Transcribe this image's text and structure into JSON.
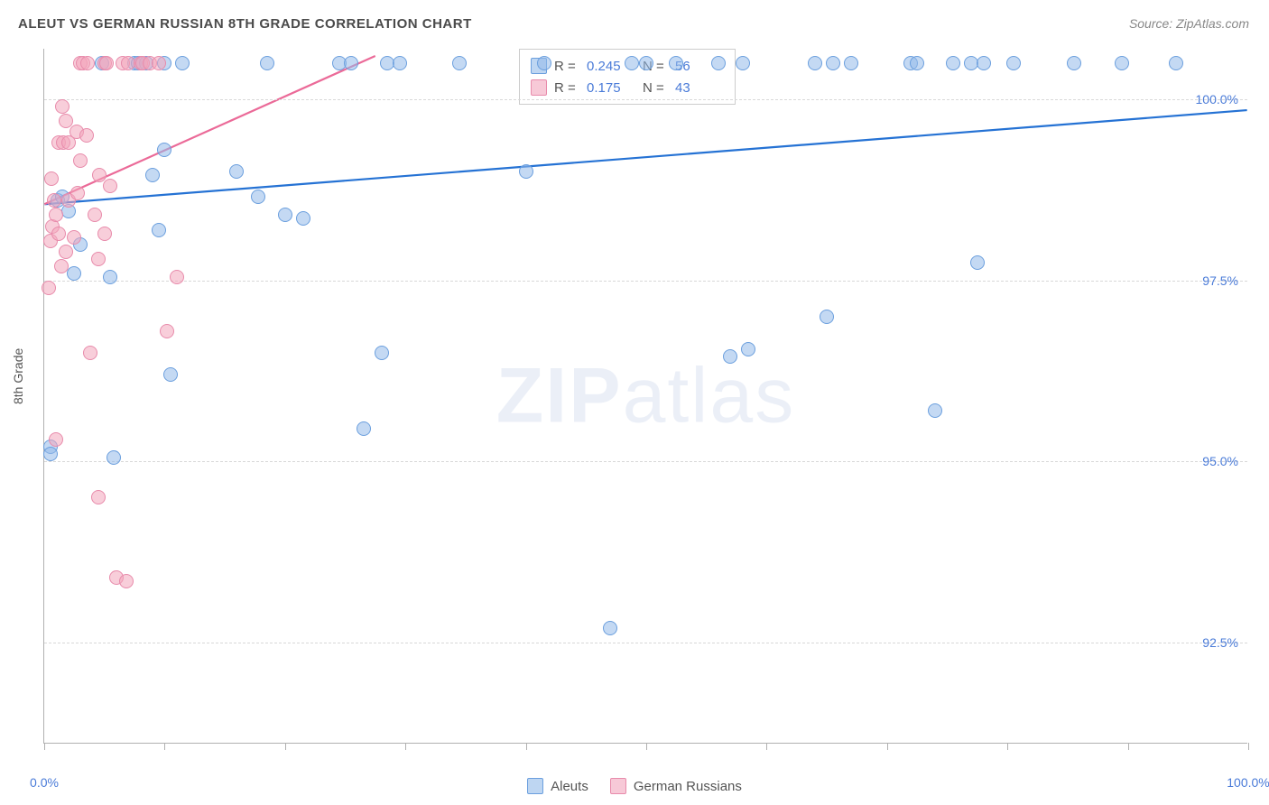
{
  "title": "ALEUT VS GERMAN RUSSIAN 8TH GRADE CORRELATION CHART",
  "source_label": "Source: ",
  "source_site": "ZipAtlas.com",
  "yaxis_label": "8th Grade",
  "watermark_a": "ZIP",
  "watermark_b": "atlas",
  "chart": {
    "type": "scatter",
    "xlim": [
      0,
      100
    ],
    "ylim": [
      91.1,
      100.7
    ],
    "xtick_step": 10,
    "x_label_min": "0.0%",
    "x_label_max": "100.0%",
    "yticks": [
      92.5,
      95.0,
      97.5,
      100.0
    ],
    "ytick_labels": [
      "92.5%",
      "95.0%",
      "97.5%",
      "100.0%"
    ],
    "grid_color": "#d8d8d8",
    "axis_color": "#b0b0b0",
    "backgroundColor": "#ffffff",
    "point_radius": 8,
    "colors": {
      "blue_fill": "rgba(147,186,233,0.55)",
      "blue_stroke": "#6b9fde",
      "pink_fill": "rgba(242,165,188,0.55)",
      "pink_stroke": "#e88bab",
      "trend_blue": "#2572d4",
      "trend_pink": "#eb6a98",
      "tick_text": "#4a7bd8"
    },
    "series": [
      {
        "name": "Aleuts",
        "color": "blue",
        "R": "0.245",
        "N": "56",
        "trend": {
          "x1": 0,
          "y1": 98.55,
          "x2": 100,
          "y2": 99.85
        },
        "points": [
          [
            0.5,
            95.2
          ],
          [
            0.5,
            95.1
          ],
          [
            1.1,
            98.6
          ],
          [
            1.5,
            98.65
          ],
          [
            2.0,
            98.45
          ],
          [
            2.5,
            97.6
          ],
          [
            3.0,
            98.0
          ],
          [
            4.8,
            100.5
          ],
          [
            5.5,
            97.55
          ],
          [
            5.8,
            95.05
          ],
          [
            7.5,
            100.5
          ],
          [
            7.8,
            100.5
          ],
          [
            8.5,
            100.5
          ],
          [
            9.0,
            98.95
          ],
          [
            9.5,
            98.2
          ],
          [
            10.0,
            99.3
          ],
          [
            10.0,
            100.5
          ],
          [
            10.5,
            96.2
          ],
          [
            11.5,
            100.5
          ],
          [
            16.0,
            99.0
          ],
          [
            17.8,
            98.65
          ],
          [
            18.5,
            100.5
          ],
          [
            20.0,
            98.4
          ],
          [
            21.5,
            98.35
          ],
          [
            24.5,
            100.5
          ],
          [
            25.5,
            100.5
          ],
          [
            26.5,
            95.45
          ],
          [
            28.0,
            96.5
          ],
          [
            28.5,
            100.5
          ],
          [
            29.5,
            100.5
          ],
          [
            34.5,
            100.5
          ],
          [
            40.0,
            99.0
          ],
          [
            41.5,
            100.5
          ],
          [
            47.0,
            92.7
          ],
          [
            48.8,
            100.5
          ],
          [
            50.0,
            100.5
          ],
          [
            52.5,
            100.5
          ],
          [
            56.0,
            100.5
          ],
          [
            57.0,
            96.45
          ],
          [
            58.0,
            100.5
          ],
          [
            58.5,
            96.55
          ],
          [
            64.0,
            100.5
          ],
          [
            65.0,
            97.0
          ],
          [
            65.5,
            100.5
          ],
          [
            67.0,
            100.5
          ],
          [
            72.0,
            100.5
          ],
          [
            72.5,
            100.5
          ],
          [
            74.0,
            95.7
          ],
          [
            75.5,
            100.5
          ],
          [
            77.5,
            97.75
          ],
          [
            77.0,
            100.5
          ],
          [
            78.0,
            100.5
          ],
          [
            80.5,
            100.5
          ],
          [
            85.5,
            100.5
          ],
          [
            89.5,
            100.5
          ],
          [
            94.0,
            100.5
          ]
        ]
      },
      {
        "name": "German Russians",
        "color": "pink",
        "R": "0.175",
        "N": "43",
        "trend": {
          "x1": 0,
          "y1": 98.55,
          "x2": 27.5,
          "y2": 100.6
        },
        "points": [
          [
            0.4,
            97.4
          ],
          [
            0.5,
            98.05
          ],
          [
            0.6,
            98.9
          ],
          [
            0.7,
            98.25
          ],
          [
            0.8,
            98.6
          ],
          [
            1.0,
            98.4
          ],
          [
            1.0,
            95.3
          ],
          [
            1.2,
            98.15
          ],
          [
            1.2,
            99.4
          ],
          [
            1.4,
            97.7
          ],
          [
            1.5,
            99.9
          ],
          [
            1.6,
            99.4
          ],
          [
            1.8,
            99.7
          ],
          [
            1.8,
            97.9
          ],
          [
            2.0,
            99.4
          ],
          [
            2.0,
            98.6
          ],
          [
            2.5,
            98.1
          ],
          [
            2.7,
            99.55
          ],
          [
            2.8,
            98.7
          ],
          [
            3.0,
            100.5
          ],
          [
            3.0,
            99.15
          ],
          [
            3.2,
            100.5
          ],
          [
            3.5,
            99.5
          ],
          [
            3.6,
            100.5
          ],
          [
            3.8,
            96.5
          ],
          [
            4.2,
            98.4
          ],
          [
            4.5,
            97.8
          ],
          [
            4.5,
            94.5
          ],
          [
            4.6,
            98.95
          ],
          [
            5.0,
            98.15
          ],
          [
            5.0,
            100.5
          ],
          [
            5.2,
            100.5
          ],
          [
            5.5,
            98.8
          ],
          [
            6.0,
            93.4
          ],
          [
            6.5,
            100.5
          ],
          [
            6.8,
            93.35
          ],
          [
            7.0,
            100.5
          ],
          [
            8.0,
            100.5
          ],
          [
            8.2,
            100.5
          ],
          [
            8.8,
            100.5
          ],
          [
            9.5,
            100.5
          ],
          [
            10.2,
            96.8
          ],
          [
            11.0,
            97.55
          ]
        ]
      }
    ]
  },
  "stat_legend": {
    "r_label": "R =",
    "n_label": "N ="
  },
  "bottom_legend": {
    "aleuts": "Aleuts",
    "germans": "German Russians"
  }
}
